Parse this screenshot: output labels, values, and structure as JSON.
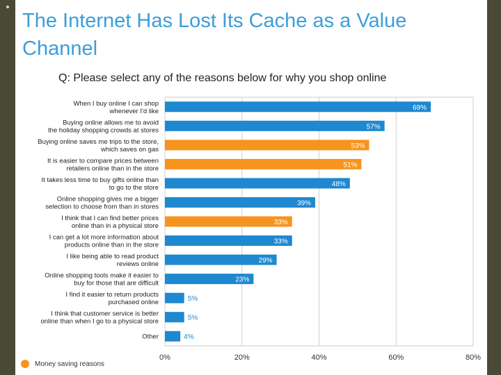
{
  "slide": {
    "title": "The Internet Has Lost Its Cache as a Value Channel",
    "question": "Q:  Please select any of the reasons below for why you shop online",
    "legend_label": "Money saving reasons"
  },
  "colors": {
    "title": "#3b9ed9",
    "default_bar": "#1e88d0",
    "money_saving_bar": "#f7941d",
    "frame": "#4a4936"
  },
  "chart_data": {
    "type": "bar",
    "orientation": "horizontal",
    "xlim": [
      0,
      80
    ],
    "x_ticks": [
      "0%",
      "20%",
      "40%",
      "60%",
      "80%"
    ],
    "x_tick_values": [
      0,
      20,
      40,
      60,
      80
    ],
    "grid": true,
    "legend_placement": "bottom-left",
    "categories": [
      [
        "When I buy online I can shop",
        "whenever I'd like"
      ],
      [
        "Buying online allows me to avoid",
        "the holiday shopping crowds at stores"
      ],
      [
        "Buying online saves me trips to the store,",
        "which saves on gas"
      ],
      [
        "It is easier to compare prices between",
        "retailers online than in the store"
      ],
      [
        "It takes less time to buy gifts online than",
        "to go to the store"
      ],
      [
        "Online shopping gives me a bigger",
        "selection to choose from than in stores"
      ],
      [
        "I think that I can find better prices",
        "online than in a physical store"
      ],
      [
        "I can get a lot more information about",
        "products online than in the store"
      ],
      [
        "I like being able to read product",
        "reviews online"
      ],
      [
        "Online shopping tools make it easier to",
        "buy for those that are difficult"
      ],
      [
        "I find it easier to return products",
        "purchased online"
      ],
      [
        "I think that customer service is better",
        "online than when I go to a physical store"
      ],
      [
        "Other"
      ]
    ],
    "values": [
      69,
      57,
      53,
      51,
      48,
      39,
      33,
      33,
      29,
      23,
      5,
      5,
      4
    ],
    "value_labels": [
      "69%",
      "57%",
      "53%",
      "51%",
      "48%",
      "39%",
      "33%",
      "33%",
      "29%",
      "23%",
      "5%",
      "5%",
      "4%"
    ],
    "money_saving": [
      false,
      false,
      true,
      true,
      false,
      false,
      true,
      false,
      false,
      false,
      false,
      false,
      false
    ]
  }
}
